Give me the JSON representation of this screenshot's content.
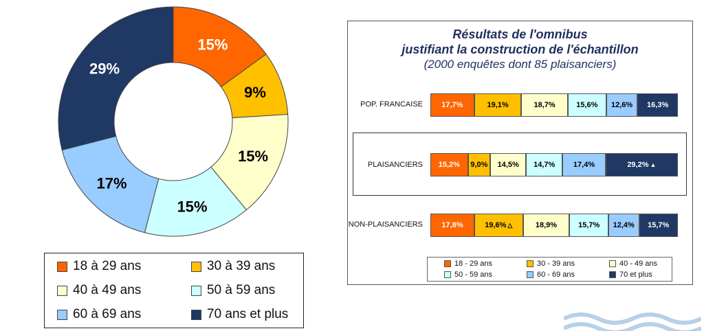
{
  "donut": {
    "chart_data": {
      "type": "pie",
      "categories": [
        "18 à 29 ans",
        "30 à 39 ans",
        "40 à 49 ans",
        "50 à 59 ans",
        "60 à 69 ans",
        "70 ans et plus"
      ],
      "values": [
        15,
        9,
        15,
        15,
        17,
        29
      ],
      "labels": [
        "15%",
        "9%",
        "15%",
        "15%",
        "17%",
        "29%"
      ],
      "colors": [
        "#ff6600",
        "#ffc000",
        "#ffffcc",
        "#ccffff",
        "#99ccff",
        "#1f3864"
      ],
      "label_colors": [
        "#ffffff",
        "#000000",
        "#000000",
        "#000000",
        "#000000",
        "#ffffff"
      ],
      "legend_position": "bottom"
    },
    "legend": [
      {
        "label": "18 à 29 ans",
        "color": "#ff6600"
      },
      {
        "label": "30 à 39 ans",
        "color": "#ffc000"
      },
      {
        "label": "40 à 49 ans",
        "color": "#ffffcc"
      },
      {
        "label": "50 à 59 ans",
        "color": "#ccffff"
      },
      {
        "label": "60 à 69 ans",
        "color": "#99ccff"
      },
      {
        "label": "70 ans et plus",
        "color": "#1f3864"
      }
    ]
  },
  "bar_panel": {
    "title_line1": "Résultats de l'omnibus",
    "title_line2": "justifiant la construction de l'échantillon",
    "title_line3": "(2000 enquêtes dont 85 plaisanciers)",
    "chart_data": {
      "type": "bar",
      "orientation": "horizontal",
      "stacked": true,
      "categories": [
        "POP. FRANCAISE",
        "PLAISANCIERS",
        "NON-PLAISANCIERS"
      ],
      "series": [
        {
          "name": "18 - 29 ans",
          "color": "#ff6600",
          "text_color": "#ffffff",
          "values": [
            17.7,
            15.2,
            17.8
          ],
          "labels": [
            "17,7%",
            "15,2%",
            "17,8%"
          ]
        },
        {
          "name": "30 - 39 ans",
          "color": "#ffc000",
          "text_color": "#000000",
          "values": [
            19.1,
            9.0,
            19.6
          ],
          "labels": [
            "19,1%",
            "9,0%",
            "19,6%"
          ]
        },
        {
          "name": "40 - 49 ans",
          "color": "#ffffcc",
          "text_color": "#000000",
          "values": [
            18.7,
            14.5,
            18.9
          ],
          "labels": [
            "18,7%",
            "14,5%",
            "18,9%"
          ]
        },
        {
          "name": "50 - 59 ans",
          "color": "#ccffff",
          "text_color": "#000000",
          "values": [
            15.6,
            14.7,
            15.7
          ],
          "labels": [
            "15,6%",
            "14,7%",
            "15,7%"
          ]
        },
        {
          "name": "60 - 69 ans",
          "color": "#99ccff",
          "text_color": "#000000",
          "values": [
            12.6,
            17.4,
            12.4
          ],
          "labels": [
            "12,6%",
            "17,4%",
            "12,4%"
          ]
        },
        {
          "name": "70 et plus",
          "color": "#1f3864",
          "text_color": "#ffffff",
          "values": [
            16.3,
            29.2,
            15.7
          ],
          "labels": [
            "16,3%",
            "29,2%",
            "15,7%"
          ]
        }
      ],
      "markers": [
        {
          "category": "PLAISANCIERS",
          "series": "70 et plus",
          "symbol": "▲",
          "color": "#ffffcc"
        },
        {
          "category": "NON-PLAISANCIERS",
          "series": "30 - 39 ans",
          "symbol": "△",
          "color": "#000000"
        }
      ],
      "highlighted_category": "PLAISANCIERS",
      "legend_position": "bottom"
    }
  }
}
